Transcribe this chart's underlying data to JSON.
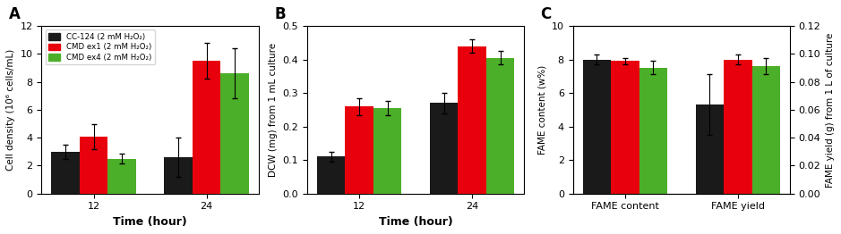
{
  "bar_colors": [
    "#1a1a1a",
    "#e8000d",
    "#4caf2a"
  ],
  "legend_labels": [
    "CC-124 (2 mM H₂O₂)",
    "CMD ex1 (2 mM H₂O₂)",
    "CMD ex4 (2 mM H₂O₂)"
  ],
  "legend_colors": [
    "#1a1a1a",
    "#e8000d",
    "#4caf2a"
  ],
  "bar_width": 0.25,
  "figsize": [
    9.39,
    2.62
  ],
  "dpi": 100,
  "panel_A": {
    "title": "A",
    "xlabel": "Time (hour)",
    "ylabel": "Cell density (10⁶ cells/mL)",
    "categories": [
      12,
      24
    ],
    "values": {
      "black": [
        3.0,
        2.6
      ],
      "red": [
        4.1,
        9.5
      ],
      "green": [
        2.5,
        8.6
      ]
    },
    "errors": {
      "black": [
        0.5,
        1.4
      ],
      "red": [
        0.9,
        1.3
      ],
      "green": [
        0.35,
        1.8
      ]
    },
    "ylim": [
      0,
      12
    ],
    "yticks": [
      0,
      2,
      4,
      6,
      8,
      10,
      12
    ]
  },
  "panel_B": {
    "title": "B",
    "xlabel": "Time (hour)",
    "ylabel": "DCW (mg) from 1 mL culture",
    "categories": [
      12,
      24
    ],
    "values": {
      "black": [
        0.11,
        0.27
      ],
      "red": [
        0.26,
        0.44
      ],
      "green": [
        0.255,
        0.405
      ]
    },
    "errors": {
      "black": [
        0.015,
        0.03
      ],
      "red": [
        0.025,
        0.02
      ],
      "green": [
        0.02,
        0.02
      ]
    },
    "ylim": [
      0.0,
      0.5
    ],
    "yticks": [
      0.0,
      0.1,
      0.2,
      0.3,
      0.4,
      0.5
    ]
  },
  "panel_C": {
    "title": "C",
    "ylabel_left": "FAME content (w%)",
    "ylabel_right": "FAME yield (g) from 1 L of culture",
    "categories": [
      "FAME content",
      "FAME yield"
    ],
    "values_left": {
      "black": [
        8.0,
        5.3
      ],
      "red": [
        7.9,
        8.0
      ],
      "green": [
        7.5,
        7.6
      ]
    },
    "errors_left": {
      "black": [
        0.3,
        1.8
      ],
      "red": [
        0.2,
        0.3
      ],
      "green": [
        0.4,
        0.5
      ]
    },
    "ylim_left": [
      0,
      10
    ],
    "yticks_left": [
      0,
      2,
      4,
      6,
      8,
      10
    ],
    "ylim_right": [
      0.0,
      0.12
    ],
    "yticks_right": [
      0.0,
      0.02,
      0.04,
      0.06,
      0.08,
      0.1,
      0.12
    ]
  }
}
